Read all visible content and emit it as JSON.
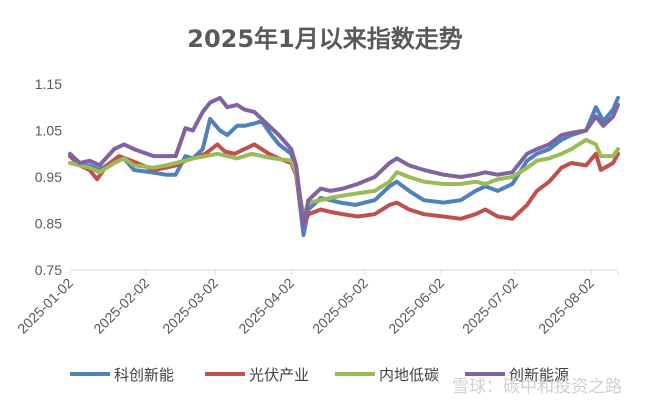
{
  "chart_data": {
    "type": "line",
    "title": "2025年1月以来指数走势",
    "xlabel": "",
    "ylabel": "",
    "x_ticks": [
      "2025-01-02",
      "2025-02-02",
      "2025-03-02",
      "2025-04-02",
      "2025-05-02",
      "2025-06-02",
      "2025-07-02",
      "2025-08-02"
    ],
    "y_ticks": [
      "0.75",
      "0.85",
      "0.95",
      "1.05",
      "1.15"
    ],
    "ylim": [
      0.75,
      1.15
    ],
    "xlim": [
      "2025-01-02",
      "2025-08-13"
    ],
    "grid": false,
    "legend_position": "bottom",
    "series": [
      {
        "name": "科创新能",
        "color": "#4F81BD",
        "points": [
          [
            "2025-01-02",
            0.995
          ],
          [
            "2025-01-06",
            0.975
          ],
          [
            "2025-01-10",
            0.975
          ],
          [
            "2025-01-14",
            0.965
          ],
          [
            "2025-01-20",
            0.985
          ],
          [
            "2025-01-24",
            0.99
          ],
          [
            "2025-01-28",
            0.965
          ],
          [
            "2025-02-04",
            0.96
          ],
          [
            "2025-02-10",
            0.955
          ],
          [
            "2025-02-14",
            0.955
          ],
          [
            "2025-02-18",
            0.995
          ],
          [
            "2025-02-21",
            0.99
          ],
          [
            "2025-02-25",
            1.01
          ],
          [
            "2025-02-28",
            1.075
          ],
          [
            "2025-03-04",
            1.05
          ],
          [
            "2025-03-07",
            1.04
          ],
          [
            "2025-03-11",
            1.06
          ],
          [
            "2025-03-14",
            1.06
          ],
          [
            "2025-03-18",
            1.065
          ],
          [
            "2025-03-21",
            1.07
          ],
          [
            "2025-03-25",
            1.04
          ],
          [
            "2025-03-28",
            1.02
          ],
          [
            "2025-04-02",
            1.0
          ],
          [
            "2025-04-04",
            0.96
          ],
          [
            "2025-04-07",
            0.825
          ],
          [
            "2025-04-09",
            0.88
          ],
          [
            "2025-04-14",
            0.905
          ],
          [
            "2025-04-18",
            0.9
          ],
          [
            "2025-04-22",
            0.895
          ],
          [
            "2025-04-28",
            0.89
          ],
          [
            "2025-05-06",
            0.9
          ],
          [
            "2025-05-12",
            0.93
          ],
          [
            "2025-05-15",
            0.94
          ],
          [
            "2025-05-20",
            0.92
          ],
          [
            "2025-05-26",
            0.9
          ],
          [
            "2025-06-03",
            0.895
          ],
          [
            "2025-06-10",
            0.9
          ],
          [
            "2025-06-16",
            0.92
          ],
          [
            "2025-06-20",
            0.93
          ],
          [
            "2025-06-25",
            0.92
          ],
          [
            "2025-07-01",
            0.935
          ],
          [
            "2025-07-07",
            0.985
          ],
          [
            "2025-07-11",
            1.0
          ],
          [
            "2025-07-16",
            1.01
          ],
          [
            "2025-07-21",
            1.03
          ],
          [
            "2025-07-25",
            1.04
          ],
          [
            "2025-07-31",
            1.05
          ],
          [
            "2025-08-04",
            1.1
          ],
          [
            "2025-08-07",
            1.07
          ],
          [
            "2025-08-11",
            1.095
          ],
          [
            "2025-08-13",
            1.12
          ]
        ]
      },
      {
        "name": "光伏产业",
        "color": "#C0504D",
        "points": [
          [
            "2025-01-02",
            0.995
          ],
          [
            "2025-01-06",
            0.975
          ],
          [
            "2025-01-10",
            0.965
          ],
          [
            "2025-01-13",
            0.945
          ],
          [
            "2025-01-17",
            0.975
          ],
          [
            "2025-01-22",
            0.995
          ],
          [
            "2025-01-27",
            0.985
          ],
          [
            "2025-02-05",
            0.965
          ],
          [
            "2025-02-10",
            0.97
          ],
          [
            "2025-02-14",
            0.975
          ],
          [
            "2025-02-18",
            0.985
          ],
          [
            "2025-02-21",
            0.99
          ],
          [
            "2025-02-26",
            1.0
          ],
          [
            "2025-03-03",
            1.02
          ],
          [
            "2025-03-06",
            1.005
          ],
          [
            "2025-03-10",
            1.0
          ],
          [
            "2025-03-14",
            1.01
          ],
          [
            "2025-03-18",
            1.02
          ],
          [
            "2025-03-24",
            1.0
          ],
          [
            "2025-03-28",
            0.99
          ],
          [
            "2025-04-02",
            0.98
          ],
          [
            "2025-04-04",
            0.955
          ],
          [
            "2025-04-07",
            0.845
          ],
          [
            "2025-04-09",
            0.87
          ],
          [
            "2025-04-14",
            0.88
          ],
          [
            "2025-04-18",
            0.875
          ],
          [
            "2025-04-23",
            0.87
          ],
          [
            "2025-04-29",
            0.865
          ],
          [
            "2025-05-06",
            0.87
          ],
          [
            "2025-05-12",
            0.89
          ],
          [
            "2025-05-15",
            0.895
          ],
          [
            "2025-05-20",
            0.88
          ],
          [
            "2025-05-26",
            0.87
          ],
          [
            "2025-06-03",
            0.865
          ],
          [
            "2025-06-10",
            0.86
          ],
          [
            "2025-06-16",
            0.87
          ],
          [
            "2025-06-20",
            0.88
          ],
          [
            "2025-06-25",
            0.865
          ],
          [
            "2025-07-01",
            0.86
          ],
          [
            "2025-07-07",
            0.89
          ],
          [
            "2025-07-11",
            0.92
          ],
          [
            "2025-07-16",
            0.94
          ],
          [
            "2025-07-21",
            0.97
          ],
          [
            "2025-07-25",
            0.98
          ],
          [
            "2025-07-31",
            0.975
          ],
          [
            "2025-08-04",
            1.0
          ],
          [
            "2025-08-06",
            0.965
          ],
          [
            "2025-08-11",
            0.98
          ],
          [
            "2025-08-13",
            1.0
          ]
        ]
      },
      {
        "name": "内地低碳",
        "color": "#9BBB59",
        "points": [
          [
            "2025-01-02",
            0.98
          ],
          [
            "2025-01-06",
            0.975
          ],
          [
            "2025-01-10",
            0.97
          ],
          [
            "2025-01-14",
            0.96
          ],
          [
            "2025-01-20",
            0.98
          ],
          [
            "2025-01-24",
            0.99
          ],
          [
            "2025-01-28",
            0.975
          ],
          [
            "2025-02-05",
            0.97
          ],
          [
            "2025-02-10",
            0.975
          ],
          [
            "2025-02-14",
            0.98
          ],
          [
            "2025-02-18",
            0.985
          ],
          [
            "2025-02-21",
            0.99
          ],
          [
            "2025-02-26",
            0.995
          ],
          [
            "2025-03-03",
            1.0
          ],
          [
            "2025-03-07",
            0.995
          ],
          [
            "2025-03-11",
            0.99
          ],
          [
            "2025-03-17",
            1.0
          ],
          [
            "2025-03-21",
            0.995
          ],
          [
            "2025-03-26",
            0.99
          ],
          [
            "2025-04-02",
            0.985
          ],
          [
            "2025-04-04",
            0.96
          ],
          [
            "2025-04-07",
            0.865
          ],
          [
            "2025-04-09",
            0.895
          ],
          [
            "2025-04-14",
            0.9
          ],
          [
            "2025-04-18",
            0.905
          ],
          [
            "2025-04-23",
            0.91
          ],
          [
            "2025-04-29",
            0.915
          ],
          [
            "2025-05-06",
            0.92
          ],
          [
            "2025-05-12",
            0.94
          ],
          [
            "2025-05-15",
            0.96
          ],
          [
            "2025-05-20",
            0.95
          ],
          [
            "2025-05-26",
            0.94
          ],
          [
            "2025-06-03",
            0.935
          ],
          [
            "2025-06-10",
            0.935
          ],
          [
            "2025-06-16",
            0.94
          ],
          [
            "2025-06-20",
            0.935
          ],
          [
            "2025-06-25",
            0.945
          ],
          [
            "2025-07-01",
            0.95
          ],
          [
            "2025-07-07",
            0.97
          ],
          [
            "2025-07-11",
            0.985
          ],
          [
            "2025-07-16",
            0.99
          ],
          [
            "2025-07-21",
            1.0
          ],
          [
            "2025-07-25",
            1.01
          ],
          [
            "2025-07-31",
            1.03
          ],
          [
            "2025-08-04",
            1.02
          ],
          [
            "2025-08-06",
            0.995
          ],
          [
            "2025-08-11",
            0.995
          ],
          [
            "2025-08-13",
            1.01
          ]
        ]
      },
      {
        "name": "创新能源",
        "color": "#8064A2",
        "points": [
          [
            "2025-01-02",
            1.0
          ],
          [
            "2025-01-06",
            0.98
          ],
          [
            "2025-01-10",
            0.985
          ],
          [
            "2025-01-14",
            0.975
          ],
          [
            "2025-01-20",
            1.01
          ],
          [
            "2025-01-24",
            1.02
          ],
          [
            "2025-01-28",
            1.01
          ],
          [
            "2025-02-05",
            0.995
          ],
          [
            "2025-02-10",
            0.995
          ],
          [
            "2025-02-14",
            0.995
          ],
          [
            "2025-02-18",
            1.055
          ],
          [
            "2025-02-21",
            1.05
          ],
          [
            "2025-02-25",
            1.09
          ],
          [
            "2025-02-28",
            1.11
          ],
          [
            "2025-03-04",
            1.12
          ],
          [
            "2025-03-07",
            1.1
          ],
          [
            "2025-03-11",
            1.105
          ],
          [
            "2025-03-14",
            1.095
          ],
          [
            "2025-03-18",
            1.09
          ],
          [
            "2025-03-24",
            1.06
          ],
          [
            "2025-03-28",
            1.04
          ],
          [
            "2025-04-02",
            1.01
          ],
          [
            "2025-04-04",
            0.975
          ],
          [
            "2025-04-07",
            0.845
          ],
          [
            "2025-04-09",
            0.9
          ],
          [
            "2025-04-14",
            0.925
          ],
          [
            "2025-04-18",
            0.92
          ],
          [
            "2025-04-23",
            0.925
          ],
          [
            "2025-04-29",
            0.935
          ],
          [
            "2025-05-06",
            0.95
          ],
          [
            "2025-05-12",
            0.98
          ],
          [
            "2025-05-15",
            0.99
          ],
          [
            "2025-05-20",
            0.975
          ],
          [
            "2025-05-26",
            0.965
          ],
          [
            "2025-06-03",
            0.955
          ],
          [
            "2025-06-10",
            0.95
          ],
          [
            "2025-06-16",
            0.955
          ],
          [
            "2025-06-20",
            0.96
          ],
          [
            "2025-06-25",
            0.955
          ],
          [
            "2025-07-01",
            0.96
          ],
          [
            "2025-07-07",
            1.0
          ],
          [
            "2025-07-11",
            1.01
          ],
          [
            "2025-07-16",
            1.02
          ],
          [
            "2025-07-21",
            1.04
          ],
          [
            "2025-07-25",
            1.045
          ],
          [
            "2025-07-31",
            1.05
          ],
          [
            "2025-08-04",
            1.08
          ],
          [
            "2025-08-07",
            1.06
          ],
          [
            "2025-08-11",
            1.08
          ],
          [
            "2025-08-13",
            1.105
          ]
        ]
      }
    ]
  },
  "watermark": "雪球：碳中和投资之路"
}
